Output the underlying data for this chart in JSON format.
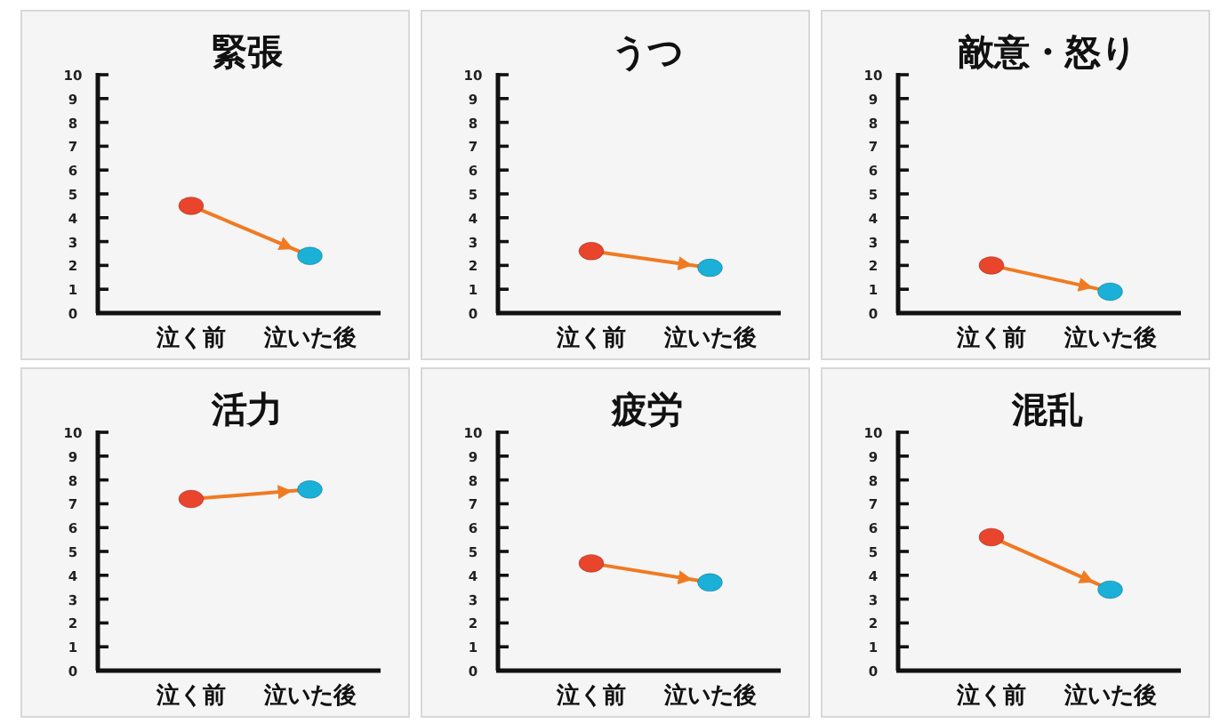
{
  "chart_data": [
    {
      "type": "line",
      "title": "緊張",
      "categories": [
        "泣く前",
        "泣いた後"
      ],
      "series": [
        {
          "color": "#f07a22",
          "colors": [
            "#e8452c",
            "#1ab0d8"
          ],
          "values": [
            4.5,
            2.4
          ]
        }
      ],
      "marker": "circle",
      "ylim": [
        0,
        10
      ],
      "yticks": [
        0,
        1,
        2,
        3,
        4,
        5,
        6,
        7,
        8,
        9,
        10
      ]
    },
    {
      "type": "line",
      "title": "うつ",
      "categories": [
        "泣く前",
        "泣いた後"
      ],
      "series": [
        {
          "color": "#f07a22",
          "colors": [
            "#e8452c",
            "#1ab0d8"
          ],
          "values": [
            2.6,
            1.9
          ]
        }
      ],
      "marker": "circle",
      "ylim": [
        0,
        10
      ],
      "yticks": [
        0,
        1,
        2,
        3,
        4,
        5,
        6,
        7,
        8,
        9,
        10
      ]
    },
    {
      "type": "line",
      "title": "敵意・怒り",
      "categories": [
        "泣く前",
        "泣いた後"
      ],
      "series": [
        {
          "color": "#f07a22",
          "colors": [
            "#e8452c",
            "#1ab0d8"
          ],
          "values": [
            2.0,
            0.9
          ]
        }
      ],
      "marker": "circle",
      "ylim": [
        0,
        10
      ],
      "yticks": [
        0,
        1,
        2,
        3,
        4,
        5,
        6,
        7,
        8,
        9,
        10
      ]
    },
    {
      "type": "line",
      "title": "活力",
      "categories": [
        "泣く前",
        "泣いた後"
      ],
      "series": [
        {
          "color": "#f07a22",
          "colors": [
            "#e8452c",
            "#1ab0d8"
          ],
          "values": [
            7.2,
            7.6
          ]
        }
      ],
      "marker": "circle",
      "ylim": [
        0,
        10
      ],
      "yticks": [
        0,
        1,
        2,
        3,
        4,
        5,
        6,
        7,
        8,
        9,
        10
      ]
    },
    {
      "type": "line",
      "title": "疲労",
      "categories": [
        "泣く前",
        "泣いた後"
      ],
      "series": [
        {
          "color": "#f07a22",
          "colors": [
            "#e8452c",
            "#1ab0d8"
          ],
          "values": [
            4.5,
            3.7
          ]
        }
      ],
      "marker": "circle",
      "ylim": [
        0,
        10
      ],
      "yticks": [
        0,
        1,
        2,
        3,
        4,
        5,
        6,
        7,
        8,
        9,
        10
      ]
    },
    {
      "type": "line",
      "title": "混乱",
      "categories": [
        "泣く前",
        "泣いた後"
      ],
      "series": [
        {
          "color": "#f07a22",
          "colors": [
            "#e8452c",
            "#1ab0d8"
          ],
          "values": [
            5.6,
            3.4
          ]
        }
      ],
      "marker": "circle",
      "ylim": [
        0,
        10
      ],
      "yticks": [
        0,
        1,
        2,
        3,
        4,
        5,
        6,
        7,
        8,
        9,
        10
      ]
    }
  ]
}
